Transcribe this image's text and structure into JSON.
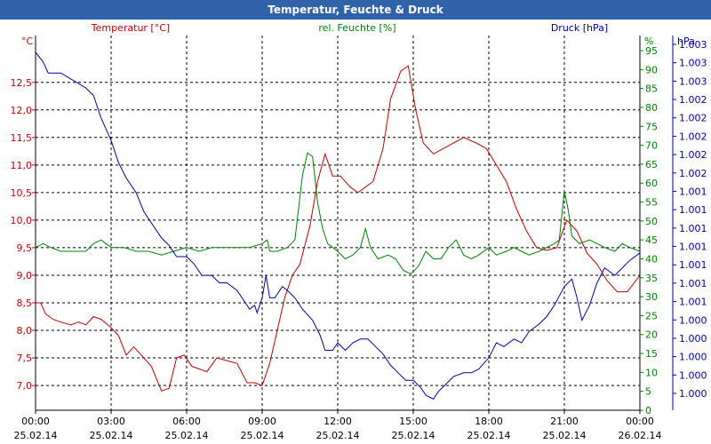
{
  "window": {
    "title": "Temperatur, Feuchte & Druck"
  },
  "colors": {
    "temp": "#c00000",
    "hum": "#008000",
    "press": "#0000a0",
    "grid": "#000000"
  },
  "chart_data": {
    "type": "line",
    "title": "Temperatur, Feuchte & Druck",
    "series": [
      {
        "name": "Temperatur [°C]",
        "axis": "temp",
        "color": "#c00000",
        "points": [
          [
            0,
            8.5
          ],
          [
            0.2,
            8.5
          ],
          [
            0.4,
            8.3
          ],
          [
            0.7,
            8.2
          ],
          [
            1,
            8.15
          ],
          [
            1.4,
            8.1
          ],
          [
            1.7,
            8.15
          ],
          [
            2,
            8.1
          ],
          [
            2.3,
            8.25
          ],
          [
            2.6,
            8.2
          ],
          [
            3,
            8.05
          ],
          [
            3.3,
            7.9
          ],
          [
            3.6,
            7.55
          ],
          [
            3.9,
            7.7
          ],
          [
            4.2,
            7.55
          ],
          [
            4.6,
            7.35
          ],
          [
            5,
            6.9
          ],
          [
            5.3,
            6.95
          ],
          [
            5.6,
            7.5
          ],
          [
            5.9,
            7.55
          ],
          [
            6.2,
            7.35
          ],
          [
            6.5,
            7.3
          ],
          [
            6.8,
            7.25
          ],
          [
            7.2,
            7.5
          ],
          [
            7.6,
            7.45
          ],
          [
            8,
            7.4
          ],
          [
            8.4,
            7.05
          ],
          [
            8.7,
            7.05
          ],
          [
            9,
            7.0
          ],
          [
            9.3,
            7.4
          ],
          [
            9.6,
            8.0
          ],
          [
            9.9,
            8.6
          ],
          [
            10.2,
            9.0
          ],
          [
            10.5,
            9.2
          ],
          [
            10.9,
            9.9
          ],
          [
            11.2,
            10.7
          ],
          [
            11.5,
            11.2
          ],
          [
            11.8,
            10.8
          ],
          [
            12.1,
            10.8
          ],
          [
            12.5,
            10.6
          ],
          [
            12.8,
            10.5
          ],
          [
            13.1,
            10.6
          ],
          [
            13.4,
            10.7
          ],
          [
            13.8,
            11.3
          ],
          [
            14.1,
            12.2
          ],
          [
            14.5,
            12.7
          ],
          [
            14.8,
            12.8
          ],
          [
            15.1,
            12.0
          ],
          [
            15.4,
            11.4
          ],
          [
            15.8,
            11.2
          ],
          [
            16.2,
            11.3
          ],
          [
            16.6,
            11.4
          ],
          [
            17,
            11.5
          ],
          [
            17.5,
            11.4
          ],
          [
            17.9,
            11.3
          ],
          [
            18.3,
            11.0
          ],
          [
            18.7,
            10.7
          ],
          [
            19.1,
            10.2
          ],
          [
            19.5,
            9.8
          ],
          [
            19.9,
            9.5
          ],
          [
            20.3,
            9.45
          ],
          [
            20.7,
            9.5
          ],
          [
            21.1,
            10.0
          ],
          [
            21.5,
            9.8
          ],
          [
            21.9,
            9.4
          ],
          [
            22.3,
            9.2
          ],
          [
            22.7,
            8.9
          ],
          [
            23.1,
            8.7
          ],
          [
            23.5,
            8.7
          ],
          [
            24,
            9.0
          ]
        ]
      },
      {
        "name": "rel. Feuchte [%]",
        "axis": "hum",
        "color": "#008000",
        "points": [
          [
            0,
            43
          ],
          [
            0.3,
            44
          ],
          [
            0.6,
            43
          ],
          [
            1,
            42
          ],
          [
            1.5,
            42
          ],
          [
            2,
            42
          ],
          [
            2.3,
            44
          ],
          [
            2.6,
            45
          ],
          [
            3,
            43
          ],
          [
            3.5,
            43
          ],
          [
            4,
            42
          ],
          [
            4.5,
            42
          ],
          [
            5,
            41
          ],
          [
            5.5,
            42
          ],
          [
            6,
            43
          ],
          [
            6.5,
            42
          ],
          [
            7,
            43
          ],
          [
            7.5,
            43
          ],
          [
            8,
            43
          ],
          [
            8.5,
            43
          ],
          [
            9,
            44
          ],
          [
            9.2,
            45
          ],
          [
            9.3,
            42
          ],
          [
            9.6,
            42
          ],
          [
            10,
            43
          ],
          [
            10.3,
            45
          ],
          [
            10.6,
            62
          ],
          [
            10.8,
            68
          ],
          [
            11,
            67
          ],
          [
            11.2,
            55
          ],
          [
            11.4,
            48
          ],
          [
            11.6,
            44
          ],
          [
            11.8,
            43
          ],
          [
            12,
            42
          ],
          [
            12.3,
            40
          ],
          [
            12.6,
            41
          ],
          [
            12.9,
            43
          ],
          [
            13.1,
            48
          ],
          [
            13.3,
            43
          ],
          [
            13.6,
            40
          ],
          [
            14,
            41
          ],
          [
            14.3,
            40
          ],
          [
            14.6,
            37
          ],
          [
            14.9,
            36
          ],
          [
            15.2,
            38
          ],
          [
            15.5,
            42
          ],
          [
            15.8,
            40
          ],
          [
            16.1,
            40
          ],
          [
            16.4,
            43
          ],
          [
            16.7,
            45
          ],
          [
            17,
            41
          ],
          [
            17.3,
            40
          ],
          [
            17.6,
            41
          ],
          [
            18,
            43
          ],
          [
            18.3,
            41
          ],
          [
            18.7,
            42
          ],
          [
            19,
            43
          ],
          [
            19.3,
            42
          ],
          [
            19.6,
            41
          ],
          [
            20,
            42
          ],
          [
            20.3,
            43
          ],
          [
            20.6,
            44
          ],
          [
            20.8,
            45
          ],
          [
            21,
            58
          ],
          [
            21.15,
            53
          ],
          [
            21.3,
            46
          ],
          [
            21.6,
            44
          ],
          [
            22,
            45
          ],
          [
            22.3,
            44
          ],
          [
            22.6,
            43
          ],
          [
            23,
            42
          ],
          [
            23.3,
            44
          ],
          [
            23.6,
            43
          ],
          [
            24,
            42
          ]
        ]
      },
      {
        "name": "Druck [hPa]",
        "axis": "press",
        "color": "#0000a0",
        "points": [
          [
            0,
            95.5
          ],
          [
            0.3,
            93
          ],
          [
            0.5,
            90
          ],
          [
            1,
            90
          ],
          [
            1.5,
            88
          ],
          [
            2,
            86
          ],
          [
            2.3,
            84
          ],
          [
            2.6,
            78
          ],
          [
            3,
            72
          ],
          [
            3.3,
            66
          ],
          [
            3.6,
            62
          ],
          [
            4,
            58
          ],
          [
            4.3,
            53
          ],
          [
            4.6,
            50
          ],
          [
            5,
            46
          ],
          [
            5.3,
            44
          ],
          [
            5.6,
            41
          ],
          [
            6,
            41
          ],
          [
            6.3,
            39
          ],
          [
            6.6,
            36
          ],
          [
            7,
            36
          ],
          [
            7.3,
            34
          ],
          [
            7.6,
            34
          ],
          [
            8,
            32
          ],
          [
            8.3,
            29
          ],
          [
            8.5,
            27
          ],
          [
            8.7,
            28
          ],
          [
            8.8,
            26
          ],
          [
            9,
            30
          ],
          [
            9.15,
            36
          ],
          [
            9.3,
            30
          ],
          [
            9.5,
            30
          ],
          [
            9.8,
            33
          ],
          [
            10,
            32
          ],
          [
            10.3,
            30
          ],
          [
            10.6,
            27
          ],
          [
            11,
            24
          ],
          [
            11.3,
            20
          ],
          [
            11.5,
            16
          ],
          [
            11.8,
            16
          ],
          [
            12,
            18
          ],
          [
            12.3,
            16
          ],
          [
            12.6,
            18
          ],
          [
            12.9,
            19
          ],
          [
            13.2,
            19
          ],
          [
            13.5,
            17
          ],
          [
            13.8,
            15
          ],
          [
            14.1,
            12
          ],
          [
            14.4,
            10
          ],
          [
            14.7,
            8
          ],
          [
            15,
            8
          ],
          [
            15.3,
            6
          ],
          [
            15.5,
            4
          ],
          [
            15.8,
            3
          ],
          [
            16,
            5
          ],
          [
            16.3,
            7
          ],
          [
            16.6,
            9
          ],
          [
            17,
            10
          ],
          [
            17.3,
            10
          ],
          [
            17.6,
            11
          ],
          [
            18,
            14
          ],
          [
            18.3,
            18
          ],
          [
            18.6,
            17
          ],
          [
            19,
            19
          ],
          [
            19.3,
            18
          ],
          [
            19.6,
            21
          ],
          [
            20,
            23
          ],
          [
            20.3,
            25
          ],
          [
            20.6,
            28
          ],
          [
            21,
            33
          ],
          [
            21.3,
            35
          ],
          [
            21.5,
            30
          ],
          [
            21.7,
            24
          ],
          [
            22,
            28
          ],
          [
            22.3,
            34
          ],
          [
            22.6,
            38
          ],
          [
            23,
            36
          ],
          [
            23.3,
            38
          ],
          [
            23.6,
            40
          ],
          [
            24,
            42
          ]
        ]
      }
    ],
    "axes": {
      "temp": {
        "label": "°C",
        "title": "Temperatur [°C]",
        "min": 6.55,
        "max": 13.35,
        "ticks": [
          "7,0",
          "7,5",
          "8,0",
          "8,5",
          "9,0",
          "9,5",
          "10,0",
          "10,5",
          "11,0",
          "11,5",
          "12,0",
          "12,5"
        ],
        "tick_values": [
          7.0,
          7.5,
          8.0,
          8.5,
          9.0,
          9.5,
          10.0,
          10.5,
          11.0,
          11.5,
          12.0,
          12.5
        ]
      },
      "hum": {
        "label": "%",
        "title": "rel. Feuchte [%]",
        "min": 0,
        "max": 99,
        "ticks": [
          "0",
          "5",
          "10",
          "15",
          "20",
          "25",
          "30",
          "35",
          "40",
          "45",
          "50",
          "55",
          "60",
          "65",
          "70",
          "75",
          "80",
          "85",
          "90",
          "95"
        ],
        "tick_values": [
          0,
          5,
          10,
          15,
          20,
          25,
          30,
          35,
          40,
          45,
          50,
          55,
          60,
          65,
          70,
          75,
          80,
          85,
          90,
          95
        ]
      },
      "press": {
        "label": "hPa",
        "title": "Druck [hPa]",
        "min": 0,
        "max": 100,
        "ticks": [
          "1.000",
          "1.000",
          "1.000",
          "1.000",
          "1.000",
          "1.001",
          "1.001",
          "1.001",
          "1.001",
          "1.001",
          "1.001",
          "1.001",
          "1.002",
          "1.002",
          "1.002",
          "1.002",
          "1.002",
          "1.003",
          "1.003",
          "1.003"
        ]
      },
      "x": {
        "min": 0,
        "max": 24,
        "ticks": [
          {
            "value": 0,
            "time": "00:00",
            "date": "25.02.14"
          },
          {
            "value": 3,
            "time": "03:00",
            "date": "25.02.14"
          },
          {
            "value": 6,
            "time": "06:00",
            "date": "25.02.14"
          },
          {
            "value": 9,
            "time": "09:00",
            "date": "25.02.14"
          },
          {
            "value": 12,
            "time": "12:00",
            "date": "25.02.14"
          },
          {
            "value": 15,
            "time": "15:00",
            "date": "25.02.14"
          },
          {
            "value": 18,
            "time": "18:00",
            "date": "25.02.14"
          },
          {
            "value": 21,
            "time": "21:00",
            "date": "25.02.14"
          },
          {
            "value": 24,
            "time": "00:00",
            "date": "26.02.14"
          }
        ]
      }
    }
  }
}
